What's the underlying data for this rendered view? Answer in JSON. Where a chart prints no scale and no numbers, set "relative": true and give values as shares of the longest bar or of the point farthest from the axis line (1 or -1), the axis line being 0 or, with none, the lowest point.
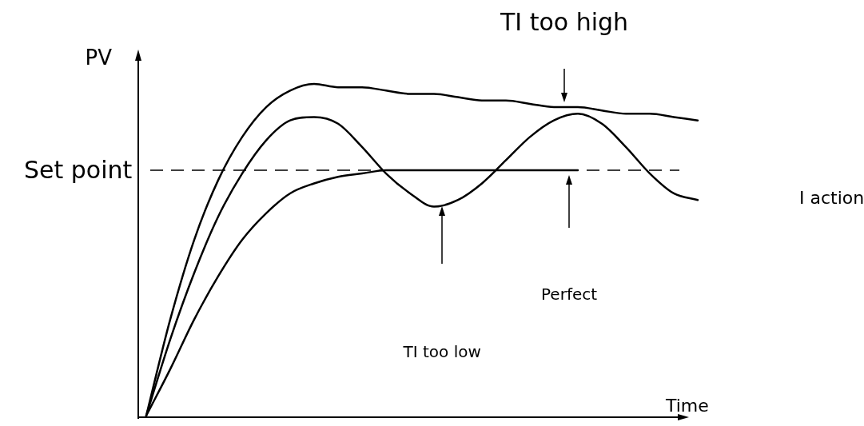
{
  "chart_data": {
    "type": "line",
    "relative": true,
    "xlabel": "Time",
    "ylabel": "PV",
    "categories": [
      null,
      null,
      null,
      null,
      null,
      null,
      null,
      null,
      null,
      null,
      null,
      null,
      null,
      null,
      null,
      null,
      null,
      null,
      null,
      null,
      null,
      null,
      null,
      null,
      null
    ],
    "series": [
      {
        "color": "#000000",
        "values": [
          0,
          0.29,
          0.53,
          0.71,
          0.84,
          0.93,
          0.98,
          1,
          0.99,
          0.99,
          0.98,
          0.97,
          0.97,
          0.96,
          0.95,
          0.95,
          0.94,
          0.93,
          0.93,
          0.92,
          0.91,
          0.91,
          0.9,
          0.89,
          null
        ]
      },
      {
        "color": "#000000",
        "values": [
          0,
          0.23,
          0.43,
          0.6,
          0.73,
          0.83,
          0.89,
          0.9,
          0.88,
          0.81,
          0.73,
          0.67,
          0.63,
          0.65,
          0.7,
          0.77,
          0.84,
          0.89,
          0.91,
          0.88,
          0.81,
          0.73,
          0.67,
          0.65,
          null
        ]
      },
      {
        "color": "#000000",
        "values": [
          0,
          0.14,
          0.29,
          0.42,
          0.53,
          0.61,
          0.67,
          0.7,
          0.72,
          0.73,
          0.74,
          0.74,
          0.74,
          0.74,
          0.74,
          0.74,
          0.74,
          0.74,
          0.74,
          null,
          null,
          null,
          null,
          null,
          null
        ]
      }
    ],
    "ref_lines": [
      {
        "axis": "y",
        "value": 0.74,
        "label": "Set point",
        "line_style": "dashed",
        "color": "#000000"
      }
    ],
    "annotations": [
      "TI too high",
      "TI too low",
      "Perfect",
      "I action"
    ],
    "legend": false,
    "marker": "none",
    "line_style": "solid"
  }
}
